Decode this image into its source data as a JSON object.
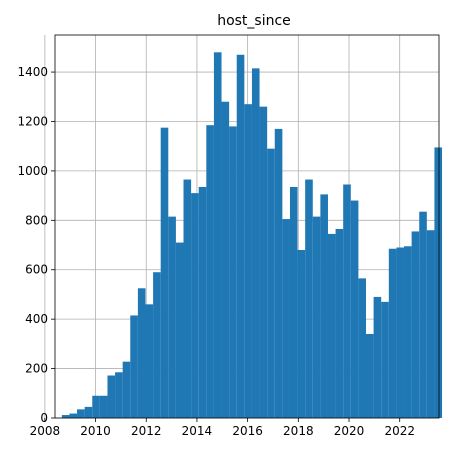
{
  "chart_data": {
    "type": "bar",
    "title": "host_since",
    "xlabel": "",
    "ylabel": "",
    "grid": true,
    "bar_color": "#1f77b4",
    "x_range": [
      2008.4,
      2023.55
    ],
    "ylim": [
      0,
      1550
    ],
    "x_ticks": [
      2008,
      2010,
      2012,
      2014,
      2016,
      2018,
      2020,
      2022
    ],
    "x_tick_labels": [
      "2008",
      "2010",
      "2012",
      "2014",
      "2016",
      "2018",
      "2020",
      "2022"
    ],
    "y_ticks": [
      0,
      200,
      400,
      600,
      800,
      1000,
      1200,
      1400
    ],
    "y_tick_labels": [
      "0",
      "200",
      "400",
      "600",
      "800",
      "1000",
      "1200",
      "1400"
    ],
    "bin_edges": [
      2008.67,
      2008.97,
      2009.27,
      2009.57,
      2009.87,
      2010.17,
      2010.47,
      2010.77,
      2011.07,
      2011.37,
      2011.67,
      2011.97,
      2012.27,
      2012.57,
      2012.87,
      2013.17,
      2013.47,
      2013.77,
      2014.07,
      2014.37,
      2014.67,
      2014.97,
      2015.27,
      2015.57,
      2015.87,
      2016.17,
      2016.47,
      2016.77,
      2017.07,
      2017.37,
      2017.67,
      2017.97,
      2018.27,
      2018.57,
      2018.87,
      2019.17,
      2019.47,
      2019.77,
      2020.07,
      2020.37,
      2020.67,
      2020.97,
      2021.27,
      2021.57,
      2021.87,
      2022.17,
      2022.47,
      2022.77,
      2023.07,
      2023.37
    ],
    "values": [
      12,
      18,
      35,
      45,
      90,
      90,
      172,
      185,
      228,
      415,
      525,
      460,
      590,
      1175,
      815,
      710,
      965,
      910,
      935,
      1185,
      1480,
      1280,
      1180,
      1470,
      1270,
      1415,
      1260,
      1090,
      1170,
      805,
      935,
      680,
      965,
      815,
      905,
      745,
      765,
      945,
      880,
      565,
      340,
      490,
      470,
      685,
      690,
      695,
      755,
      835,
      760,
      1095
    ]
  }
}
